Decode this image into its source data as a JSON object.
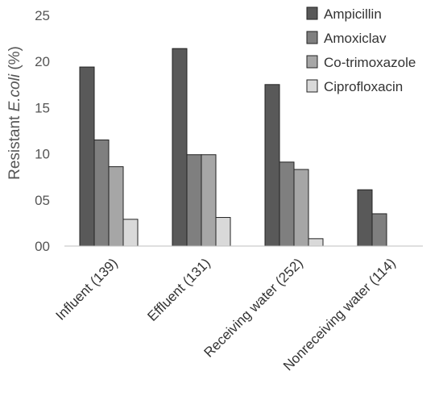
{
  "chart_data": {
    "type": "bar",
    "categories": [
      "Influent (139)",
      "Effluent (131)",
      "Receiving water (252)",
      "Nonreceiving water (114)"
    ],
    "series": [
      {
        "name": "Ampicillin",
        "color": "#595959",
        "values": [
          19.4,
          21.4,
          17.5,
          6.1
        ]
      },
      {
        "name": "Amoxiclav",
        "color": "#7f7f7f",
        "values": [
          11.5,
          9.9,
          9.1,
          3.5
        ]
      },
      {
        "name": "Co-trimoxazole",
        "color": "#a6a6a6",
        "values": [
          8.6,
          9.9,
          8.3,
          0
        ]
      },
      {
        "name": "Ciprofloxacin",
        "color": "#d9d9d9",
        "values": [
          2.9,
          3.1,
          0.8,
          0
        ]
      }
    ],
    "ylabel_prefix": "Resistant ",
    "ylabel_italic": "E.coli",
    "ylabel_suffix": " (%)",
    "yticks": [
      "00",
      "05",
      "10",
      "15",
      "20",
      "25"
    ],
    "ytick_values": [
      0,
      5,
      10,
      15,
      20,
      25
    ],
    "ylim": [
      0,
      25
    ],
    "legend_position": "top-right",
    "grid": false
  }
}
